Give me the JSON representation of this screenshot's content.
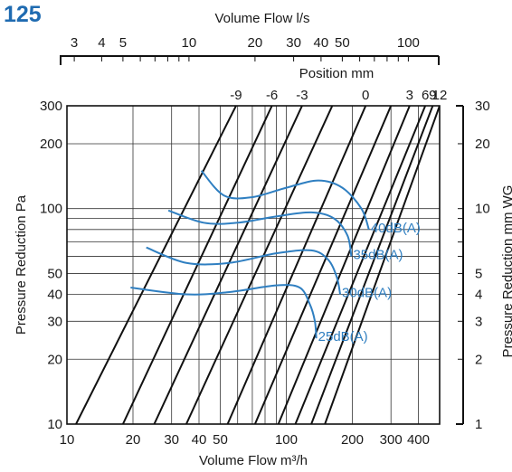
{
  "size_label": "125",
  "chart_data": {
    "type": "line",
    "title": "",
    "x_bottom": {
      "label": "Volume Flow m³/h",
      "scale": "log",
      "range": [
        10,
        500
      ],
      "ticks": [
        10,
        20,
        30,
        40,
        50,
        100,
        200,
        300,
        400
      ],
      "tick_labels": [
        "10",
        "20",
        "30",
        "40",
        "50",
        "100",
        "200",
        "300",
        "400"
      ]
    },
    "x_top": {
      "label": "Volume Flow l/s",
      "scale": "log",
      "ticks": [
        3,
        4,
        5,
        10,
        20,
        30,
        40,
        50,
        100
      ],
      "tick_labels": [
        "3",
        "4",
        "5",
        "10",
        "20",
        "30",
        "40",
        "50",
        "100"
      ]
    },
    "y_left": {
      "label": "Pressure Reduction Pa",
      "scale": "log",
      "range": [
        10,
        300
      ],
      "ticks": [
        10,
        20,
        30,
        40,
        50,
        100,
        200,
        300
      ],
      "tick_labels": [
        "10",
        "20",
        "30",
        "40",
        "50",
        "100",
        "200",
        "300"
      ]
    },
    "y_right": {
      "label": "Pressure Reduction mm WG",
      "scale": "log",
      "range": [
        1,
        30
      ],
      "ticks": [
        1,
        2,
        3,
        4,
        5,
        10,
        20,
        30
      ],
      "tick_labels": [
        "1",
        "2",
        "3",
        "4",
        "5",
        "10",
        "20",
        "30"
      ]
    },
    "position_axis": {
      "label": "Position mm",
      "tick_labels": [
        "-9",
        "-6",
        "-3",
        "0",
        "3",
        "6",
        "9",
        "12"
      ]
    },
    "grid": true,
    "position_lines": [
      {
        "label": "-9",
        "points": [
          [
            11,
            10
          ],
          [
            59,
            300
          ]
        ]
      },
      {
        "label": "-6",
        "points": [
          [
            18,
            10
          ],
          [
            86,
            300
          ]
        ]
      },
      {
        "label": "-3",
        "points": [
          [
            25,
            10
          ],
          [
            118,
            300
          ]
        ]
      },
      {
        "label": "",
        "points": [
          [
            35,
            10
          ],
          [
            162,
            300
          ]
        ]
      },
      {
        "label": "0",
        "points": [
          [
            54,
            10
          ],
          [
            230,
            300
          ]
        ]
      },
      {
        "label": "",
        "points": [
          [
            72,
            10
          ],
          [
            300,
            300
          ]
        ]
      },
      {
        "label": "3",
        "points": [
          [
            92,
            10
          ],
          [
            365,
            300
          ]
        ]
      },
      {
        "label": "6",
        "points": [
          [
            110,
            10
          ],
          [
            430,
            300
          ]
        ]
      },
      {
        "label": "9",
        "points": [
          [
            130,
            10
          ],
          [
            465,
            300
          ]
        ]
      },
      {
        "label": "12",
        "points": [
          [
            150,
            10
          ],
          [
            500,
            300
          ]
        ]
      }
    ],
    "series": [
      {
        "name": "25dB(A)",
        "points": [
          [
            19.5,
            43
          ],
          [
            35,
            40
          ],
          [
            55,
            41
          ],
          [
            90,
            44
          ],
          [
            115,
            43
          ],
          [
            128,
            36
          ],
          [
            135,
            30
          ],
          [
            137,
            25
          ]
        ]
      },
      {
        "name": "30dB(A)",
        "points": [
          [
            23,
            66
          ],
          [
            35,
            56
          ],
          [
            55,
            56
          ],
          [
            90,
            62
          ],
          [
            130,
            64
          ],
          [
            155,
            58
          ],
          [
            170,
            48
          ],
          [
            176,
            40
          ]
        ]
      },
      {
        "name": "35dB(A)",
        "points": [
          [
            29,
            98
          ],
          [
            42,
            86
          ],
          [
            60,
            86
          ],
          [
            90,
            92
          ],
          [
            130,
            96
          ],
          [
            165,
            90
          ],
          [
            190,
            75
          ],
          [
            198,
            60
          ]
        ]
      },
      {
        "name": "40dB(A)",
        "points": [
          [
            41,
            150
          ],
          [
            52,
            115
          ],
          [
            70,
            113
          ],
          [
            100,
            125
          ],
          [
            140,
            135
          ],
          [
            180,
            125
          ],
          [
            220,
            100
          ],
          [
            238,
            80
          ]
        ]
      }
    ]
  }
}
